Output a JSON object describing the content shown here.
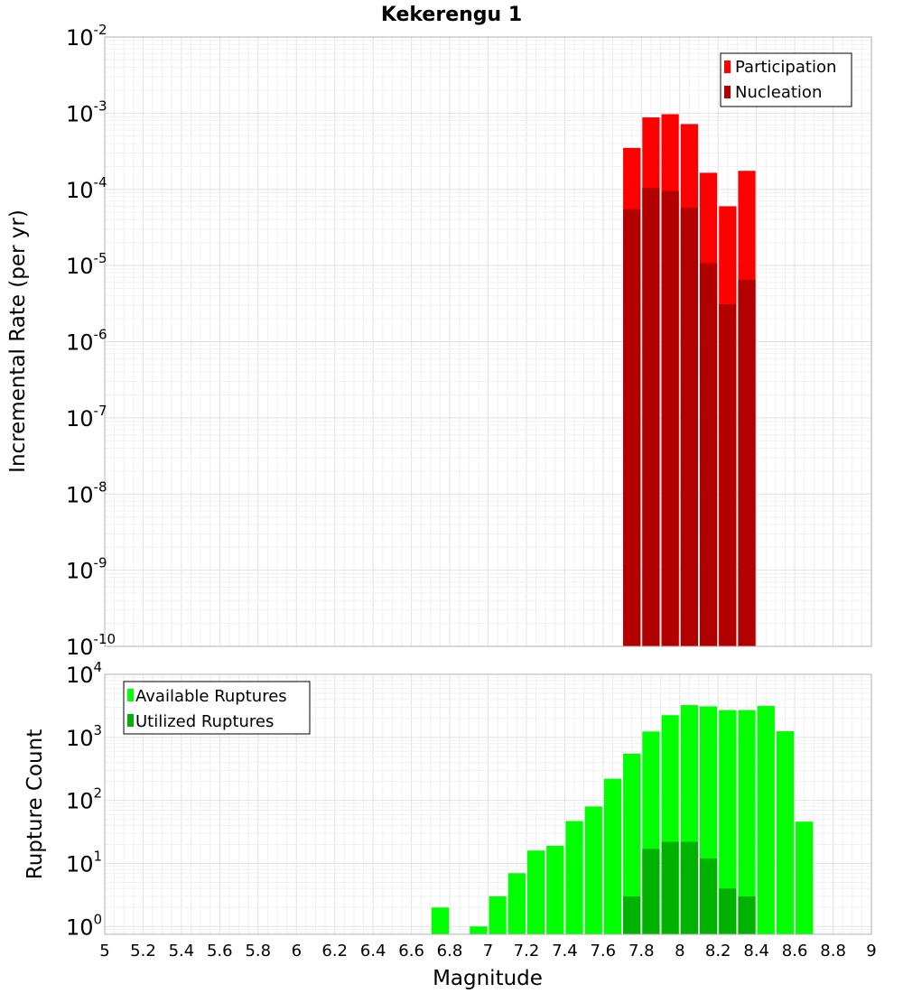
{
  "chart_data": [
    {
      "type": "bar",
      "title": "Kekerengu 1",
      "xlabel": "",
      "ylabel": "Incremental Rate (per yr)",
      "y_scale": "log",
      "ylim": [
        1e-10,
        0.01
      ],
      "xlim": [
        5.0,
        9.0
      ],
      "x_ticks_shown": false,
      "y_tick_labels": [
        {
          "base": "10",
          "exp": "-10"
        },
        {
          "base": "10",
          "exp": "-9"
        },
        {
          "base": "10",
          "exp": "-8"
        },
        {
          "base": "10",
          "exp": "-7"
        },
        {
          "base": "10",
          "exp": "-6"
        },
        {
          "base": "10",
          "exp": "-5"
        },
        {
          "base": "10",
          "exp": "-4"
        },
        {
          "base": "10",
          "exp": "-3"
        },
        {
          "base": "10",
          "exp": "-2"
        }
      ],
      "bar_width": 0.1,
      "grid": true,
      "legend_position": "top-right",
      "series": [
        {
          "name": "Participation",
          "color": "#ff0000",
          "x": [
            7.75,
            7.85,
            7.95,
            8.05,
            8.15,
            8.25,
            8.35
          ],
          "values": [
            0.00035,
            0.00088,
            0.00097,
            0.00072,
            0.000165,
            6e-05,
            0.000175
          ]
        },
        {
          "name": "Nucleation",
          "color": "#b20000",
          "x": [
            7.75,
            7.85,
            7.95,
            8.05,
            8.15,
            8.25,
            8.35
          ],
          "values": [
            5.5e-05,
            0.000104,
            9.5e-05,
            5.7e-05,
            1.08e-05,
            3.1e-06,
            6.5e-06
          ]
        }
      ]
    },
    {
      "type": "bar",
      "title": "",
      "xlabel": "Magnitude",
      "ylabel": "Rupture Count",
      "y_scale": "log",
      "ylim": [
        0.75,
        10000
      ],
      "xlim": [
        5.0,
        9.0
      ],
      "x_tick_labels": [
        "5",
        "5.2",
        "5.4",
        "5.6",
        "5.8",
        "6",
        "6.2",
        "6.4",
        "6.6",
        "6.8",
        "7",
        "7.2",
        "7.4",
        "7.6",
        "7.8",
        "8",
        "8.2",
        "8.4",
        "8.6",
        "8.8",
        "9"
      ],
      "y_tick_labels": [
        {
          "base": "10",
          "exp": "0"
        },
        {
          "base": "10",
          "exp": "1"
        },
        {
          "base": "10",
          "exp": "2"
        },
        {
          "base": "10",
          "exp": "3"
        },
        {
          "base": "10",
          "exp": "4"
        }
      ],
      "bar_width": 0.1,
      "grid": true,
      "legend_position": "top-left",
      "series": [
        {
          "name": "Available Ruptures",
          "color": "#00ff00",
          "x": [
            6.75,
            6.95,
            7.05,
            7.15,
            7.25,
            7.35,
            7.45,
            7.55,
            7.65,
            7.75,
            7.85,
            7.95,
            8.05,
            8.15,
            8.25,
            8.35,
            8.45,
            8.55,
            8.65
          ],
          "values": [
            2,
            1,
            3,
            7,
            16,
            19,
            47,
            80,
            220,
            550,
            1240,
            2250,
            3250,
            3100,
            2700,
            2700,
            3150,
            1250,
            46
          ]
        },
        {
          "name": "Utilized Ruptures",
          "color": "#00b200",
          "x": [
            7.75,
            7.85,
            7.95,
            8.05,
            8.15,
            8.25,
            8.35
          ],
          "values": [
            3,
            17,
            22,
            22,
            12,
            4,
            3
          ]
        }
      ]
    }
  ]
}
